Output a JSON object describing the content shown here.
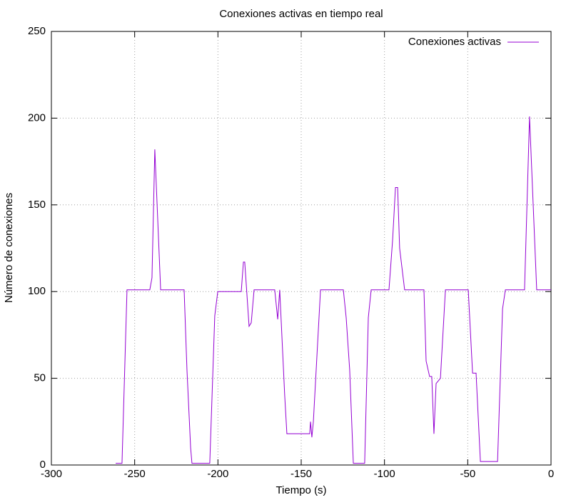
{
  "chart_data": {
    "type": "line",
    "title": "Conexiones activas en tiempo real",
    "x_label": "Tiempo (s)",
    "y_label": "Número de conexiones",
    "xlim": [
      -300,
      0
    ],
    "ylim": [
      0,
      250
    ],
    "xticks": [
      -300,
      -250,
      -200,
      -150,
      -100,
      -50,
      0
    ],
    "yticks": [
      0,
      50,
      100,
      150,
      200,
      250
    ],
    "grid": true,
    "legend": "top-right",
    "x": [
      -261.4,
      -257.6,
      -254.6,
      -240.9,
      -239.6,
      -237.9,
      -234.4,
      -220.3,
      -218.6,
      -216.4,
      -215.6,
      -204.9,
      -201.9,
      -200.1,
      -186,
      -184.7,
      -183.9,
      -181.3,
      -180,
      -178.3,
      -165.9,
      -164.1,
      -162.9,
      -159.9,
      -158.6,
      -144.9,
      -144.4,
      -143.6,
      -142.7,
      -138.4,
      -124.7,
      -123,
      -120.9,
      -118.7,
      -111.9,
      -109.7,
      -108,
      -97.3,
      -95.1,
      -93.4,
      -92.1,
      -90.9,
      -87.9,
      -76.3,
      -75,
      -72.9,
      -71.6,
      -70.3,
      -69,
      -66.4,
      -63.4,
      -49.7,
      -47.1,
      -45,
      -42.4,
      -32.1,
      -29.1,
      -27.4,
      -15.9,
      -12.9,
      -8.6,
      0
    ],
    "series": [
      {
        "name": "Conexiones activas",
        "color": "#9400d3",
        "values": [
          1,
          1,
          101,
          101,
          108,
          182,
          101,
          101,
          55,
          10,
          1,
          1,
          86,
          100,
          100,
          117,
          117,
          80,
          82,
          101,
          101,
          84,
          101,
          40,
          18,
          18,
          25,
          16,
          25,
          101,
          101,
          85,
          55,
          1,
          1,
          85,
          101,
          101,
          130,
          160,
          160,
          125,
          101,
          101,
          60,
          51,
          51,
          18,
          47,
          50,
          101,
          101,
          53,
          53,
          2,
          2,
          90,
          101,
          101,
          201,
          101,
          101
        ]
      }
    ]
  }
}
